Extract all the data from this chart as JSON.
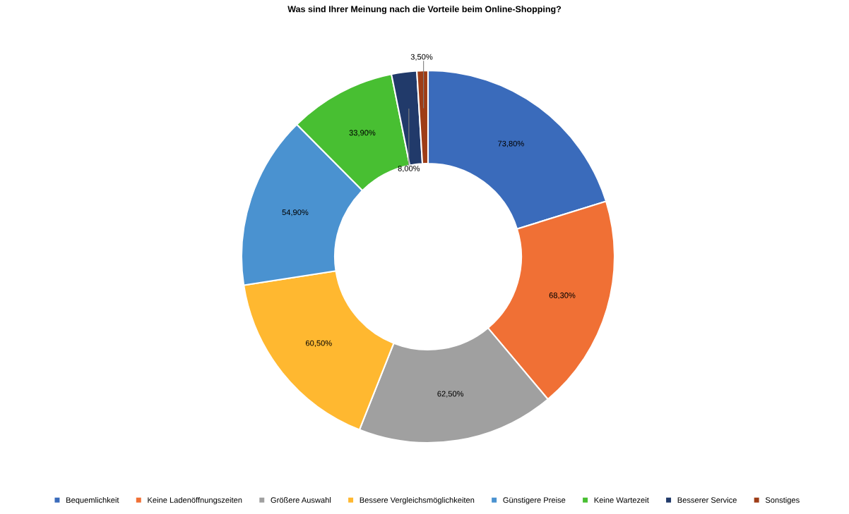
{
  "chart_data": {
    "type": "donut",
    "title": "Was sind Ihrer Meinung nach die Vorteile beim Online-Shopping?",
    "categories": [
      "Bequemlichkeit",
      "Keine Ladenöffnungszeiten",
      "Größere Auswahl",
      "Bessere Vergleichsmöglichkeiten",
      "Günstigere Preise",
      "Keine Wartezeit",
      "Besserer Service",
      "Sonstiges"
    ],
    "values": [
      73.8,
      68.3,
      62.5,
      60.5,
      54.9,
      33.9,
      8.0,
      3.5
    ],
    "value_labels": [
      "73,80%",
      "68,30%",
      "62,50%",
      "60,50%",
      "54,90%",
      "33,90%",
      "8,00%",
      "3,50%"
    ],
    "colors": [
      "#3a6bbb",
      "#f07035",
      "#a0a0a0",
      "#ffb830",
      "#4a92d0",
      "#48bf32",
      "#213a6a",
      "#9e3d17"
    ],
    "legend": "bottom"
  }
}
